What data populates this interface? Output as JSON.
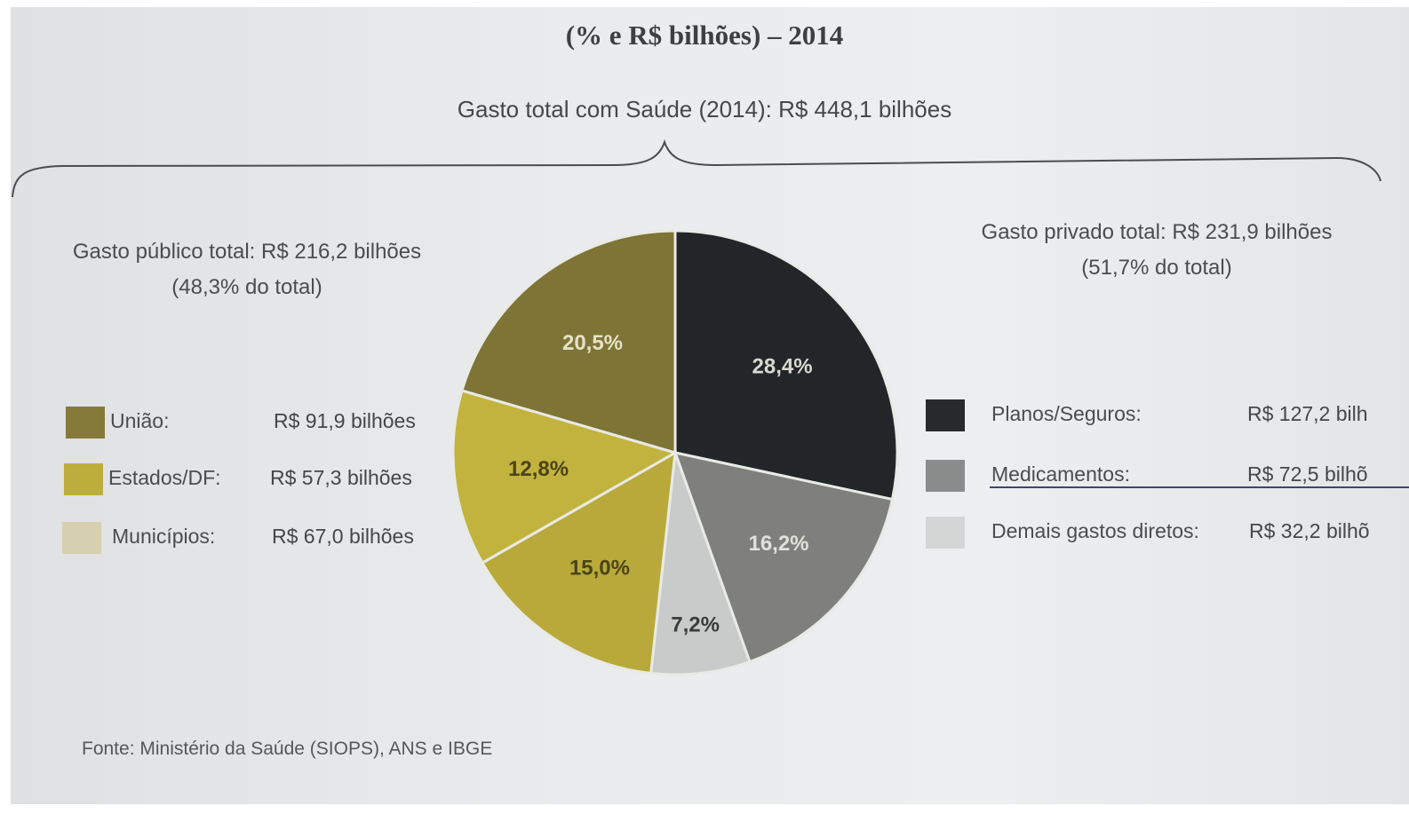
{
  "header": {
    "title": "(% e R$ bilhões) – 2014",
    "total": "Gasto total com Saúde (2014): R$ 448,1 bilhões"
  },
  "public": {
    "heading": "Gasto público total: R$ 216,2 bilhões",
    "share": "(48,3% do total)"
  },
  "private": {
    "heading": "Gasto privado total: R$ 231,9 bilhões",
    "share": "(51,7% do total)"
  },
  "legend_left": [
    {
      "label": "União:",
      "value": "R$ 91,9 bilhões",
      "color": "#857a3a"
    },
    {
      "label": "Estados/DF:",
      "value": "R$ 57,3 bilhões",
      "color": "#bdae3c"
    },
    {
      "label": "Municípios:",
      "value": "R$ 67,0 bilhões",
      "color": "#d6d0b0"
    }
  ],
  "legend_right": [
    {
      "label": "Planos/Seguros:",
      "value": "R$ 127,2 bilh",
      "color": "#262a2c"
    },
    {
      "label": "Medicamentos:",
      "value": "R$ 72,5 bilhõ",
      "color": "#8a8b8b"
    },
    {
      "label": "Demais gastos diretos:",
      "value": "R$ 32,2 bilhõ",
      "color": "#d4d6d6"
    }
  ],
  "source": "Fonte: Ministério da Saúde (SIOPS), ANS e IBGE",
  "chart_data": {
    "type": "pie",
    "title": "(% e R$ bilhões) – 2014",
    "slices": [
      {
        "name": "Planos/Seguros",
        "value": 28.4,
        "label": "28,4%",
        "color": "#232628",
        "label_color": "#d8d8d0"
      },
      {
        "name": "Medicamentos",
        "value": 16.2,
        "label": "16,2%",
        "color": "#7f7f7d",
        "label_color": "#e2e2dc"
      },
      {
        "name": "Demais gastos diretos",
        "value": 7.2,
        "label": "7,2%",
        "color": "#c9cbca",
        "label_color": "#3a3c3c"
      },
      {
        "name": "Municípios",
        "value": 15.0,
        "label": "15,0%",
        "color": "#b9a93a",
        "label_color": "#4a4418"
      },
      {
        "name": "Estados/DF",
        "value": 12.8,
        "label": "12,8%",
        "color": "#c2b33e",
        "label_color": "#4a4418"
      },
      {
        "name": "União",
        "value": 20.5,
        "label": "20,5%",
        "color": "#7e7436",
        "label_color": "#e6e2c8"
      }
    ]
  }
}
